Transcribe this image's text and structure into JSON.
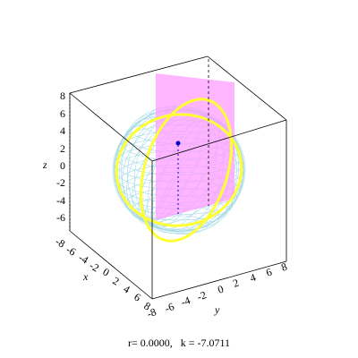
{
  "plot": {
    "caption": "r= 0.0000,   k = -7.0711",
    "axes": {
      "z": {
        "label": "z",
        "ticks": [
          "8",
          "6",
          "4",
          "2",
          "0",
          "-2",
          "-4",
          "-6"
        ]
      },
      "x": {
        "label": "x",
        "ticks": [
          "-8",
          "-6",
          "-4",
          "-2",
          "0",
          "2",
          "4",
          "6",
          "8"
        ]
      },
      "y": {
        "label": "y",
        "ticks": [
          "-8",
          "-6",
          "-4",
          "-2",
          "0",
          "2",
          "4",
          "6",
          "8"
        ]
      }
    },
    "colors": {
      "sphere_mesh": "#a8dbe8",
      "plane": "#ff9cff",
      "great_circle": "#ffff33",
      "vector": "#0000cc",
      "box": "#000000"
    }
  }
}
